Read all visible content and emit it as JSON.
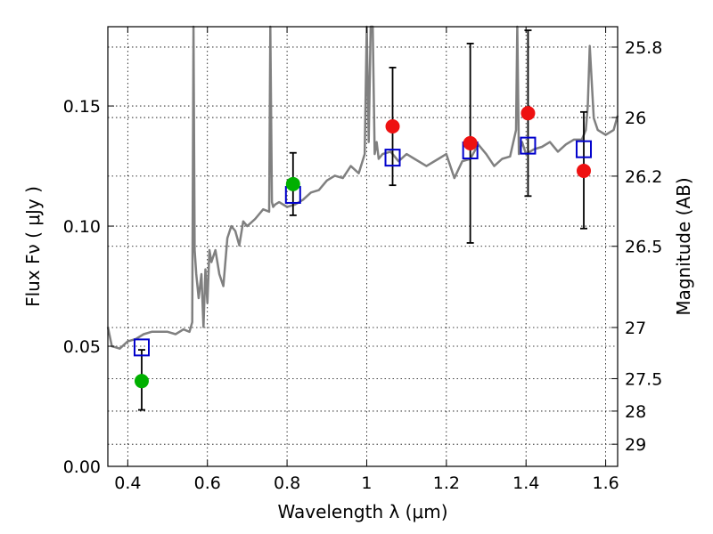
{
  "chart_data": {
    "type": "scatter",
    "xlabel": "Wavelength  λ (μm)",
    "ylabel": "Flux  Fν ( μJy )",
    "ylabel_right": "Magnitude (AB)",
    "xlim": [
      0.35,
      1.63
    ],
    "ylim": [
      0.0,
      0.183
    ],
    "x_ticks": [
      0.4,
      0.6,
      0.8,
      1.0,
      1.2,
      1.4,
      1.6
    ],
    "x_tick_labels": [
      "0.4",
      "0.6",
      "0.8",
      "1",
      "1.2",
      "1.4",
      "1.6"
    ],
    "y_ticks": [
      0.0,
      0.05,
      0.1,
      0.15
    ],
    "y_tick_labels": [
      "0.00",
      "0.05",
      "0.10",
      "0.15"
    ],
    "right_ticks": [
      {
        "label": "25.8",
        "flux": 0.1745
      },
      {
        "label": "26",
        "flux": 0.1452
      },
      {
        "label": "26.2",
        "flux": 0.1208
      },
      {
        "label": "26.5",
        "flux": 0.0916
      },
      {
        "label": "27",
        "flux": 0.0578
      },
      {
        "label": "27.5",
        "flux": 0.0365
      },
      {
        "label": "28",
        "flux": 0.023
      },
      {
        "label": "29",
        "flux": 0.0092
      }
    ],
    "grid": true,
    "colors": {
      "spectrum": "#808080",
      "model_square": "#0000cc",
      "green_point": "#00b000",
      "red_point": "#ee1111",
      "errorbar": "#000000"
    },
    "series": [
      {
        "marker": "square",
        "x": [
          0.435,
          0.815,
          1.065,
          1.26,
          1.405,
          1.545
        ],
        "y": [
          0.0495,
          0.113,
          0.1285,
          0.1315,
          0.1335,
          0.132
        ]
      },
      {
        "marker": "circle-green",
        "x": [
          0.435,
          0.815
        ],
        "y": [
          0.0355,
          0.1175
        ],
        "yerr_low": [
          0.0235,
          0.1045
        ],
        "yerr_high": [
          0.0485,
          0.1305
        ]
      },
      {
        "marker": "circle-red",
        "x": [
          1.065,
          1.26,
          1.405,
          1.545
        ],
        "y": [
          0.1415,
          0.1345,
          0.147,
          0.123
        ],
        "yerr_low": [
          0.117,
          0.093,
          0.1125,
          0.099
        ],
        "yerr_high": [
          0.166,
          0.176,
          0.1815,
          0.1475
        ]
      },
      {
        "marker": "line",
        "x": [
          0.35,
          0.36,
          0.38,
          0.4,
          0.42,
          0.44,
          0.46,
          0.48,
          0.5,
          0.52,
          0.54,
          0.555,
          0.562,
          0.565,
          0.568,
          0.572,
          0.578,
          0.585,
          0.59,
          0.595,
          0.6,
          0.605,
          0.61,
          0.62,
          0.63,
          0.64,
          0.65,
          0.66,
          0.67,
          0.68,
          0.69,
          0.7,
          0.72,
          0.74,
          0.755,
          0.758,
          0.762,
          0.765,
          0.77,
          0.78,
          0.8,
          0.82,
          0.84,
          0.86,
          0.88,
          0.9,
          0.92,
          0.94,
          0.96,
          0.98,
          0.995,
          1.0,
          1.005,
          1.01,
          1.015,
          1.02,
          1.025,
          1.03,
          1.04,
          1.06,
          1.08,
          1.1,
          1.12,
          1.15,
          1.18,
          1.2,
          1.22,
          1.24,
          1.26,
          1.28,
          1.3,
          1.32,
          1.34,
          1.36,
          1.375,
          1.378,
          1.382,
          1.39,
          1.4,
          1.42,
          1.44,
          1.46,
          1.48,
          1.5,
          1.52,
          1.54,
          1.55,
          1.555,
          1.56,
          1.57,
          1.58,
          1.6,
          1.62,
          1.63
        ],
        "y": [
          0.058,
          0.05,
          0.049,
          0.052,
          0.053,
          0.055,
          0.056,
          0.056,
          0.056,
          0.055,
          0.057,
          0.056,
          0.06,
          0.183,
          0.09,
          0.08,
          0.07,
          0.08,
          0.058,
          0.082,
          0.068,
          0.09,
          0.085,
          0.09,
          0.08,
          0.075,
          0.095,
          0.1,
          0.098,
          0.092,
          0.102,
          0.1,
          0.103,
          0.107,
          0.106,
          0.183,
          0.11,
          0.108,
          0.109,
          0.11,
          0.108,
          0.109,
          0.111,
          0.114,
          0.115,
          0.119,
          0.121,
          0.12,
          0.125,
          0.122,
          0.13,
          0.183,
          0.135,
          0.183,
          0.183,
          0.13,
          0.135,
          0.128,
          0.13,
          0.131,
          0.127,
          0.13,
          0.128,
          0.125,
          0.128,
          0.13,
          0.12,
          0.127,
          0.128,
          0.134,
          0.13,
          0.125,
          0.128,
          0.129,
          0.14,
          0.183,
          0.13,
          0.135,
          0.13,
          0.132,
          0.133,
          0.135,
          0.131,
          0.134,
          0.136,
          0.136,
          0.14,
          0.15,
          0.175,
          0.145,
          0.14,
          0.138,
          0.14,
          0.146
        ]
      }
    ]
  }
}
